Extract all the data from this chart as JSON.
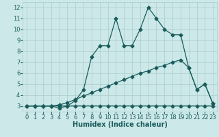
{
  "xlabel": "Humidex (Indice chaleur)",
  "bg_color": "#cce8e8",
  "grid_color": "#aacccc",
  "line_color": "#1a5c5c",
  "xlim": [
    -0.5,
    23.5
  ],
  "ylim": [
    2.5,
    12.5
  ],
  "xticks": [
    0,
    1,
    2,
    3,
    4,
    5,
    6,
    7,
    8,
    9,
    10,
    11,
    12,
    13,
    14,
    15,
    16,
    17,
    18,
    19,
    20,
    21,
    22,
    23
  ],
  "yticks": [
    3,
    4,
    5,
    6,
    7,
    8,
    9,
    10,
    11,
    12
  ],
  "line1_x": [
    0,
    1,
    2,
    3,
    4,
    5,
    6,
    7,
    8,
    9,
    10,
    11,
    12,
    13,
    14,
    15,
    16,
    17,
    18,
    19,
    20,
    21,
    22,
    23
  ],
  "line1_y": [
    3,
    3,
    3,
    3,
    2.8,
    3,
    3,
    3,
    3,
    3,
    3,
    3,
    3,
    3,
    3,
    3,
    3,
    3,
    3,
    3,
    3,
    3,
    3,
    3
  ],
  "line2_x": [
    0,
    1,
    2,
    3,
    4,
    5,
    6,
    7,
    8,
    9,
    10,
    11,
    12,
    13,
    14,
    15,
    16,
    17,
    18,
    19,
    20,
    21,
    22,
    23
  ],
  "line2_y": [
    3,
    3,
    3,
    3,
    3.1,
    3.3,
    3.6,
    3.9,
    4.2,
    4.5,
    4.8,
    5.1,
    5.4,
    5.7,
    6.0,
    6.2,
    6.5,
    6.7,
    7.0,
    7.2,
    6.5,
    4.5,
    5.0,
    3.2
  ],
  "line3_x": [
    0,
    1,
    2,
    3,
    4,
    5,
    6,
    7,
    8,
    9,
    10,
    11,
    12,
    13,
    14,
    15,
    16,
    17,
    18,
    19,
    20,
    21,
    22,
    23
  ],
  "line3_y": [
    3,
    3,
    3,
    3,
    3,
    3,
    3.5,
    4.5,
    7.5,
    8.5,
    8.5,
    11,
    8.5,
    8.5,
    10,
    12,
    11,
    10,
    9.5,
    9.5,
    6.5,
    4.5,
    5.0,
    3.2
  ],
  "markersize": 2.5,
  "linewidth": 0.9,
  "xlabel_fontsize": 7,
  "tick_fontsize": 6
}
